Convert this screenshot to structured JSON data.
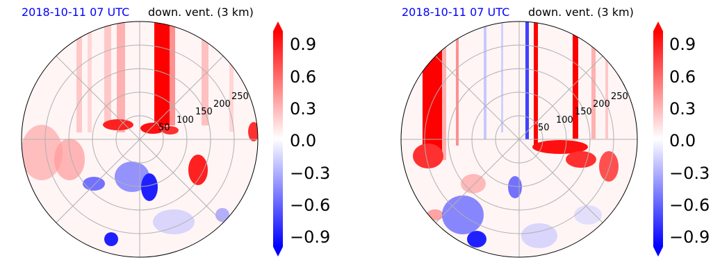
{
  "panels": [
    {
      "title_left": "2018-10-11 07 UTC",
      "title_right": "down. vent. (3 km)",
      "range_rings": [
        "50",
        "100",
        "150",
        "200",
        "250"
      ],
      "colorbar_ticks": [
        "0.9",
        "0.6",
        "0.3",
        "0.0",
        "−0.3",
        "−0.6",
        "−0.9"
      ]
    },
    {
      "title_left": "2018-10-11 07 UTC",
      "title_right": "down. vent. (3 km)",
      "range_rings": [
        "50",
        "100",
        "150",
        "200",
        "250"
      ],
      "colorbar_ticks": [
        "0.9",
        "0.6",
        "0.3",
        "0.0",
        "−0.3",
        "−0.6",
        "−0.9"
      ]
    }
  ],
  "colors": {
    "title_accent": "#0000ff",
    "positive": "#ff0000",
    "negative": "#0000ff",
    "neutral": "#ffffff"
  },
  "chart_data": [
    {
      "type": "polar-field",
      "title": "2018-10-11 07 UTC   down. vent. (3 km)",
      "r_ticks": [
        50,
        100,
        150,
        200,
        250
      ],
      "colorbar": {
        "min": -1.0,
        "max": 1.0,
        "ticks": [
          0.9,
          0.6,
          0.3,
          0.0,
          -0.3,
          -0.6,
          -0.9
        ],
        "colormap": "blue-white-red",
        "extend": "both"
      },
      "grid": true
    },
    {
      "type": "polar-field",
      "title": "2018-10-11 07 UTC   down. vent. (3 km)",
      "r_ticks": [
        50,
        100,
        150,
        200,
        250
      ],
      "colorbar": {
        "min": -1.0,
        "max": 1.0,
        "ticks": [
          0.9,
          0.6,
          0.3,
          0.0,
          -0.3,
          -0.6,
          -0.9
        ],
        "colormap": "blue-white-red",
        "extend": "both"
      },
      "grid": true
    }
  ]
}
